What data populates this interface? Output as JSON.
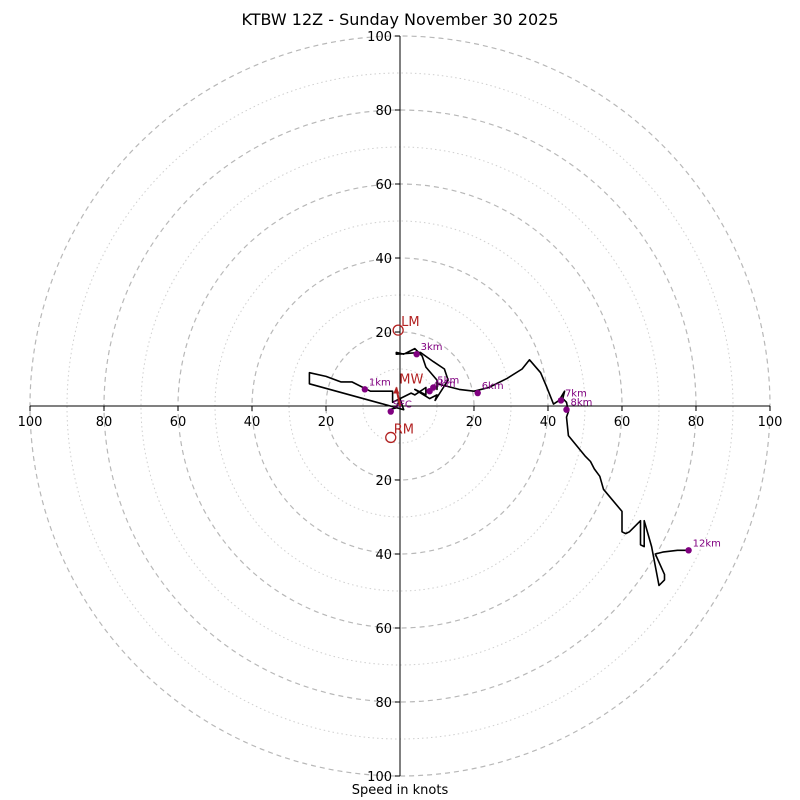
{
  "chart_data": {
    "type": "hodograph",
    "title": "KTBW 12Z - Sunday November 30 2025",
    "xlabel": "Speed in knots",
    "units": "knots",
    "axis_range": [
      -100,
      100
    ],
    "ring_values": [
      10,
      20,
      30,
      40,
      50,
      60,
      70,
      80,
      90,
      100
    ],
    "labeled_rings": [
      20,
      40,
      60,
      80,
      100
    ],
    "x_tick_labels": [
      {
        "value": -100,
        "label": "100"
      },
      {
        "value": -80,
        "label": "80"
      },
      {
        "value": -60,
        "label": "60"
      },
      {
        "value": -40,
        "label": "40"
      },
      {
        "value": -20,
        "label": "20"
      },
      {
        "value": 20,
        "label": "20"
      },
      {
        "value": 40,
        "label": "40"
      },
      {
        "value": 60,
        "label": "60"
      },
      {
        "value": 80,
        "label": "80"
      },
      {
        "value": 100,
        "label": "100"
      }
    ],
    "y_tick_labels": [
      {
        "value": 100,
        "label": "100"
      },
      {
        "value": 80,
        "label": "80"
      },
      {
        "value": 60,
        "label": "60"
      },
      {
        "value": 40,
        "label": "40"
      },
      {
        "value": 20,
        "label": "20"
      },
      {
        "value": -20,
        "label": "20"
      },
      {
        "value": -40,
        "label": "40"
      },
      {
        "value": -60,
        "label": "60"
      },
      {
        "value": -80,
        "label": "80"
      },
      {
        "value": -100,
        "label": "100"
      }
    ],
    "trace": [
      [
        -3,
        -1
      ],
      [
        -1,
        -0.5
      ],
      [
        0,
        2
      ],
      [
        1,
        -1
      ],
      [
        -24.5,
        6
      ],
      [
        -24.5,
        9
      ],
      [
        -20,
        8
      ],
      [
        -16,
        6.5
      ],
      [
        -13,
        6.5
      ],
      [
        -8,
        4
      ],
      [
        -5,
        4
      ],
      [
        -2,
        4
      ],
      [
        -2,
        1
      ],
      [
        0,
        2
      ],
      [
        3,
        3.5
      ],
      [
        4,
        3
      ],
      [
        7,
        5
      ],
      [
        7,
        3
      ],
      [
        4,
        4.5
      ],
      [
        8,
        2
      ],
      [
        10,
        3
      ],
      [
        9.5,
        1.5
      ],
      [
        13,
        7
      ],
      [
        12,
        10
      ],
      [
        9,
        12
      ],
      [
        5.5,
        14.5
      ],
      [
        -1,
        14
      ],
      [
        -1,
        14.5
      ],
      [
        1,
        14
      ],
      [
        4,
        15.5
      ],
      [
        6,
        13.5
      ],
      [
        7,
        10.5
      ],
      [
        10,
        7
      ],
      [
        10,
        4.5
      ],
      [
        10,
        6
      ],
      [
        12,
        5.5
      ],
      [
        14,
        5
      ],
      [
        16,
        4.5
      ],
      [
        20,
        4
      ],
      [
        24,
        5
      ],
      [
        29,
        7.5
      ],
      [
        33,
        10
      ],
      [
        35,
        12.5
      ],
      [
        38,
        9
      ],
      [
        39.5,
        5.5
      ],
      [
        41.5,
        0.5
      ],
      [
        43,
        1.5
      ],
      [
        44.5,
        4
      ],
      [
        44,
        2
      ],
      [
        45,
        1
      ],
      [
        45.5,
        -1.5
      ],
      [
        45,
        -3
      ],
      [
        45.5,
        -8
      ],
      [
        50,
        -13.5
      ],
      [
        51.5,
        -15
      ],
      [
        52.5,
        -17
      ],
      [
        54,
        -19
      ],
      [
        55,
        -22.5
      ],
      [
        60,
        -28.5
      ],
      [
        60,
        -34
      ],
      [
        61,
        -34.5
      ],
      [
        62,
        -34
      ],
      [
        65,
        -31
      ],
      [
        65,
        -37.5
      ],
      [
        66,
        -38
      ],
      [
        66,
        -31
      ],
      [
        68,
        -38
      ],
      [
        70,
        -48.5
      ],
      [
        71.5,
        -47
      ],
      [
        71.5,
        -45.5
      ],
      [
        69,
        -40
      ],
      [
        71,
        -39.5
      ],
      [
        75,
        -39
      ],
      [
        78,
        -39
      ]
    ],
    "height_markers": [
      {
        "label": "1km",
        "u": -9.5,
        "v": 4.5
      },
      {
        "label": "3km",
        "u": 4.5,
        "v": 14
      },
      {
        "label": "4km",
        "u": 8,
        "v": 4
      },
      {
        "label": "5km",
        "u": 9,
        "v": 5
      },
      {
        "label": "6km",
        "u": 21,
        "v": 3.5
      },
      {
        "label": "7km",
        "u": 43.5,
        "v": 1.5
      },
      {
        "label": "8km",
        "u": 45,
        "v": -1
      },
      {
        "label": "12km",
        "u": 78,
        "v": -39
      }
    ],
    "surface_marker": {
      "label": "SFC",
      "u": -2.5,
      "v": -1.5
    },
    "storm_motion": [
      {
        "label": "LM",
        "u": -0.5,
        "v": 20.5
      },
      {
        "label": "RM",
        "u": -2.5,
        "v": -8.5
      },
      {
        "label": "MW",
        "u": -1,
        "v": 5
      }
    ],
    "colors": {
      "trace": "#000000",
      "height_markers": "#800080",
      "storm_motion": "#b22222",
      "rings": "#b0b0b0",
      "axes": "#000000"
    }
  }
}
